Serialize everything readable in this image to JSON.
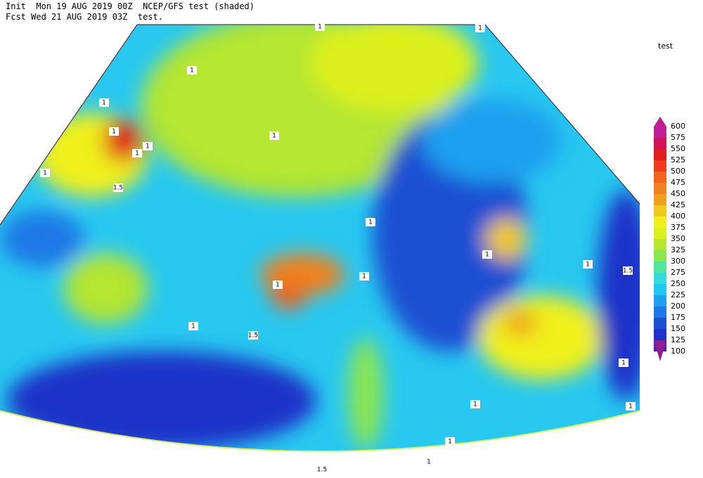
{
  "header": {
    "line1": "Init  Mon 19 AUG 2019 00Z  NCEP/GFS test (shaded)",
    "line2": "Fcst Wed 21 AUG 2019 03Z  test."
  },
  "legend": {
    "title": "test",
    "levels": [
      {
        "label": "600",
        "color": "#c01e96"
      },
      {
        "label": "575",
        "color": "#d0145a"
      },
      {
        "label": "550",
        "color": "#e01e1e"
      },
      {
        "label": "525",
        "color": "#f03c1e"
      },
      {
        "label": "500",
        "color": "#f0641e"
      },
      {
        "label": "475",
        "color": "#f0821e"
      },
      {
        "label": "450",
        "color": "#f0a01e"
      },
      {
        "label": "425",
        "color": "#f0c81e"
      },
      {
        "label": "400",
        "color": "#f0f01e"
      },
      {
        "label": "375",
        "color": "#dcf01e"
      },
      {
        "label": "350",
        "color": "#b4e632"
      },
      {
        "label": "325",
        "color": "#8ce650"
      },
      {
        "label": "300",
        "color": "#50e6a0"
      },
      {
        "label": "275",
        "color": "#32dcdc"
      },
      {
        "label": "250",
        "color": "#1ec8f0"
      },
      {
        "label": "225",
        "color": "#1ea0f0"
      },
      {
        "label": "200",
        "color": "#1e78e6"
      },
      {
        "label": "175",
        "color": "#1e50d2"
      },
      {
        "label": "150",
        "color": "#1e32c8"
      },
      {
        "label": "125",
        "color": "#6414b4"
      },
      {
        "label": "100",
        "color": "#8c1e96"
      }
    ]
  },
  "contour_labels": [
    "1",
    "1",
    "1",
    "1",
    "1",
    "1",
    "1",
    "1.5",
    "1",
    "1",
    "1",
    "1",
    "1",
    "1.5",
    "1",
    "1",
    "1.5",
    "1",
    "1",
    "1",
    "1",
    "1",
    "1",
    "1.5"
  ]
}
